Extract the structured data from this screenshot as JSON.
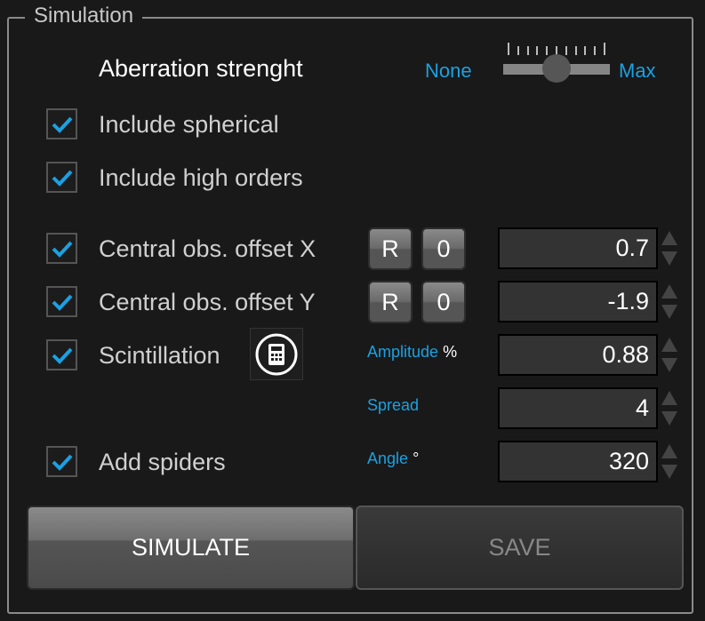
{
  "group_title": "Simulation",
  "aberration": {
    "label": "Aberration strenght",
    "min_label": "None",
    "max_label": "Max",
    "value_fraction": 0.5
  },
  "checkboxes": [
    {
      "label": "Include spherical",
      "checked": true
    },
    {
      "label": "Include high orders",
      "checked": true
    },
    {
      "label": "Central obs. offset X",
      "checked": true
    },
    {
      "label": "Central obs. offset Y",
      "checked": true
    },
    {
      "label": "Scintillation",
      "checked": true
    },
    {
      "label": "Add spiders",
      "checked": true
    }
  ],
  "offset_buttons": {
    "reset": "R",
    "zero": "0"
  },
  "fields": {
    "offset_x": "0.7",
    "offset_y": "-1.9",
    "amplitude": "0.88",
    "spread": "4",
    "angle": "320"
  },
  "sublabels": {
    "amplitude": "Amplitude",
    "amplitude_unit": "%",
    "spread": "Spread",
    "angle": "Angle",
    "angle_unit": "°"
  },
  "buttons": {
    "simulate": "SIMULATE",
    "save": "SAVE"
  },
  "colors": {
    "accent": "#1ba1e2",
    "background": "#191919"
  }
}
